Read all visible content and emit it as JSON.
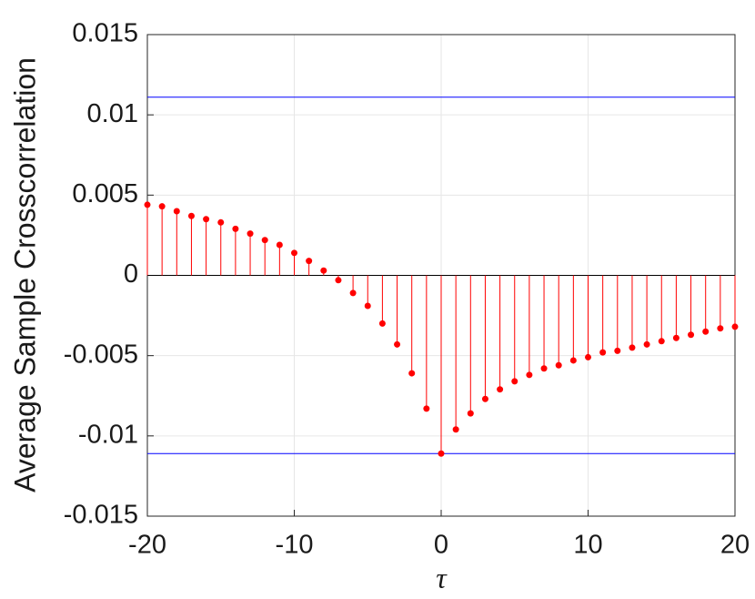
{
  "chart_data": {
    "type": "stem",
    "ylabel": "Average Sample Crosscorrelation",
    "xlabel": "τ",
    "x": [
      -20,
      -19,
      -18,
      -17,
      -16,
      -15,
      -14,
      -13,
      -12,
      -11,
      -10,
      -9,
      -8,
      -7,
      -6,
      -5,
      -4,
      -3,
      -2,
      -1,
      0,
      1,
      2,
      3,
      4,
      5,
      6,
      7,
      8,
      9,
      10,
      11,
      12,
      13,
      14,
      15,
      16,
      17,
      18,
      19,
      20
    ],
    "series": [
      {
        "color": "#ff0000",
        "values": [
          0.0044,
          0.0043,
          0.004,
          0.0037,
          0.0035,
          0.0033,
          0.0029,
          0.0026,
          0.0022,
          0.0019,
          0.0014,
          0.0009,
          0.0003,
          -0.0003,
          -0.0011,
          -0.0019,
          -0.003,
          -0.0043,
          -0.0061,
          -0.0083,
          -0.0111,
          -0.0096,
          -0.0086,
          -0.0077,
          -0.0071,
          -0.0066,
          -0.0062,
          -0.0058,
          -0.0056,
          -0.0053,
          -0.0051,
          -0.0048,
          -0.0047,
          -0.0045,
          -0.0043,
          -0.0041,
          -0.0039,
          -0.0037,
          -0.0035,
          -0.0033,
          -0.0032
        ]
      }
    ],
    "reference_lines": {
      "color": "#0000ff",
      "values": [
        0.0111,
        -0.0111
      ]
    },
    "xlim": [
      -20,
      20
    ],
    "xticks": [
      -20,
      -10,
      0,
      10,
      20
    ],
    "ylim": [
      -0.015,
      0.015
    ],
    "yticks": [
      -0.015,
      -0.01,
      -0.005,
      0,
      0.005,
      0.01,
      0.015
    ],
    "grid": true
  }
}
